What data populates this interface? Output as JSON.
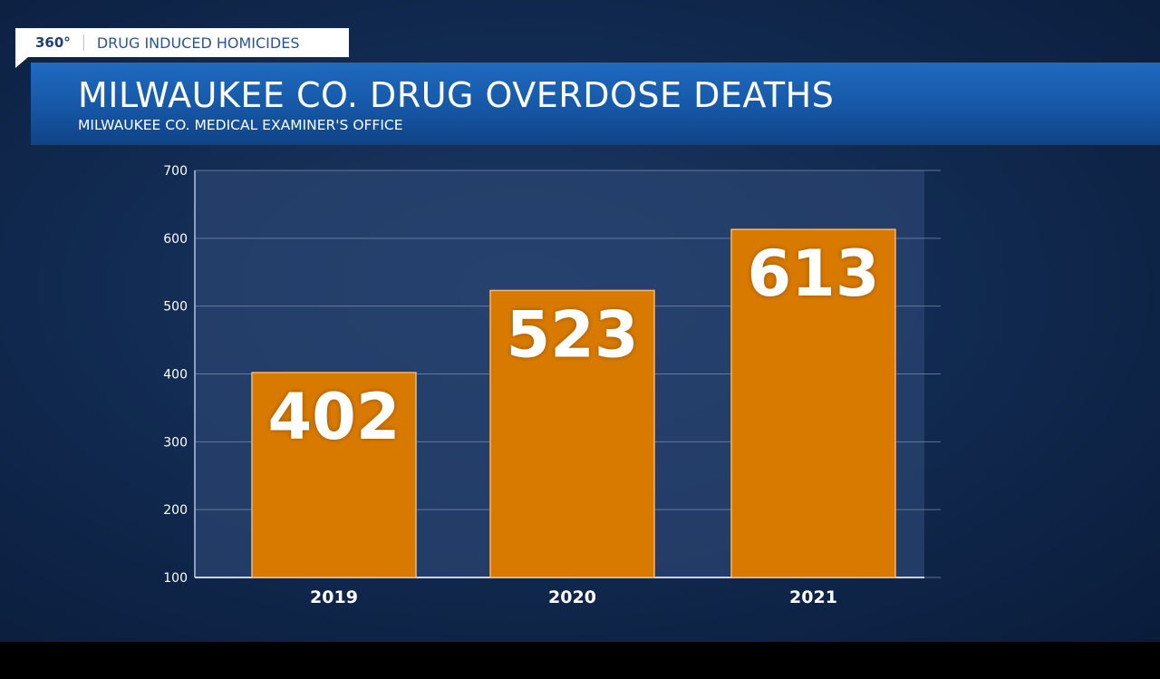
{
  "tag": {
    "number": "360°",
    "label": "DRUG INDUCED HOMICIDES"
  },
  "header": {
    "title": "MILWAUKEE CO. DRUG OVERDOSE DEATHS",
    "subtitle": "MILWAUKEE CO. MEDICAL EXAMINER'S OFFICE"
  },
  "colors": {
    "bar": "#d97a00",
    "banner": "#1a60b3",
    "background": "#122b52"
  },
  "chart_data": {
    "type": "bar",
    "title": "MILWAUKEE CO. DRUG OVERDOSE DEATHS",
    "subtitle": "MILWAUKEE CO. MEDICAL EXAMINER'S OFFICE",
    "categories": [
      "2019",
      "2020",
      "2021"
    ],
    "values": [
      402,
      523,
      613
    ],
    "data_labels": [
      "402",
      "523",
      "613"
    ],
    "ylim": [
      100,
      700
    ],
    "yticks": [
      "100",
      "200",
      "300",
      "400",
      "500",
      "600",
      "700"
    ],
    "grid": true,
    "xlabel": "",
    "ylabel": ""
  }
}
